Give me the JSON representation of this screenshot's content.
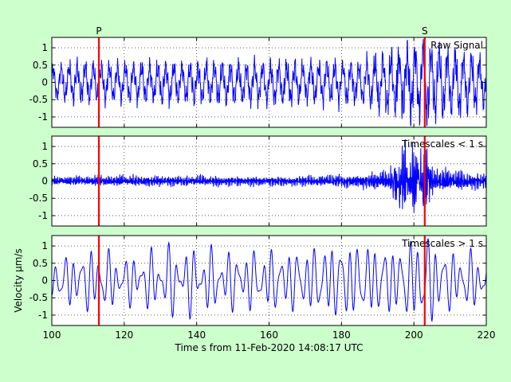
{
  "figure": {
    "background": "#ccffcc",
    "plot_background": "#ffffff",
    "signal_color": "#0000ff",
    "marker_color": "#ff0000"
  },
  "chart_data": [
    {
      "type": "line",
      "annotation": "Raw Signal",
      "xlim": [
        100,
        220
      ],
      "ylim": [
        -1.3,
        1.3
      ],
      "yticks": [
        -1,
        -0.5,
        0,
        0.5,
        1
      ],
      "ytick_labels": [
        "-1",
        "-0.5",
        "0",
        "0.5",
        "1"
      ],
      "xticks": [
        100,
        120,
        140,
        160,
        180,
        200,
        220
      ],
      "grid": true,
      "markers": [
        {
          "label": "P",
          "x": 113
        },
        {
          "label": "S",
          "x": 203
        }
      ],
      "series": [
        {
          "envelope": [
            [
              100,
              0.5
            ],
            [
              110,
              0.6
            ],
            [
              115,
              0.55
            ],
            [
              150,
              0.6
            ],
            [
              185,
              0.6
            ],
            [
              193,
              0.9
            ],
            [
              198,
              1.0
            ],
            [
              203,
              1.15
            ],
            [
              210,
              0.95
            ],
            [
              220,
              0.75
            ]
          ]
        }
      ]
    },
    {
      "type": "line",
      "annotation": "Timescales < 1 s",
      "xlim": [
        100,
        220
      ],
      "ylim": [
        -1.3,
        1.3
      ],
      "yticks": [
        -1,
        -0.5,
        0,
        0.5,
        1
      ],
      "ytick_labels": [
        "-1",
        "-0.5",
        "0",
        "0.5",
        "1"
      ],
      "xticks": [
        100,
        120,
        140,
        160,
        180,
        200,
        220
      ],
      "grid": true,
      "markers": [
        {
          "label": "P",
          "x": 113
        },
        {
          "label": "S",
          "x": 203
        }
      ],
      "series": [
        {
          "envelope": [
            [
              100,
              0.12
            ],
            [
              115,
              0.14
            ],
            [
              130,
              0.15
            ],
            [
              150,
              0.13
            ],
            [
              170,
              0.14
            ],
            [
              185,
              0.18
            ],
            [
              193,
              0.3
            ],
            [
              196,
              0.6
            ],
            [
              200,
              0.75
            ],
            [
              203,
              0.85
            ],
            [
              206,
              0.35
            ],
            [
              220,
              0.2
            ]
          ]
        }
      ]
    },
    {
      "type": "line",
      "annotation": "Timescales > 1 s",
      "ylabel": "Velocity μm/s",
      "xlabel": "Time s from 11-Feb-2020 14:08:17 UTC",
      "xlim": [
        100,
        220
      ],
      "ylim": [
        -1.3,
        1.3
      ],
      "yticks": [
        -1,
        -0.5,
        0,
        0.5,
        1
      ],
      "ytick_labels": [
        "-1",
        "-0.5",
        "0",
        "0.5",
        "1"
      ],
      "xticks": [
        100,
        120,
        140,
        160,
        180,
        200,
        220
      ],
      "xtick_labels": [
        "100",
        "120",
        "140",
        "160",
        "180",
        "200",
        "220"
      ],
      "grid": true,
      "markers": [
        {
          "label": "P",
          "x": 113
        },
        {
          "label": "S",
          "x": 203
        }
      ],
      "series": [
        {
          "envelope": [
            [
              100,
              0.5
            ],
            [
              113,
              0.8
            ],
            [
              120,
              0.55
            ],
            [
              133,
              0.85
            ],
            [
              150,
              0.7
            ],
            [
              170,
              0.75
            ],
            [
              180,
              0.95
            ],
            [
              195,
              0.8
            ],
            [
              203,
              1.15
            ],
            [
              210,
              0.7
            ],
            [
              220,
              0.7
            ]
          ]
        }
      ]
    }
  ]
}
